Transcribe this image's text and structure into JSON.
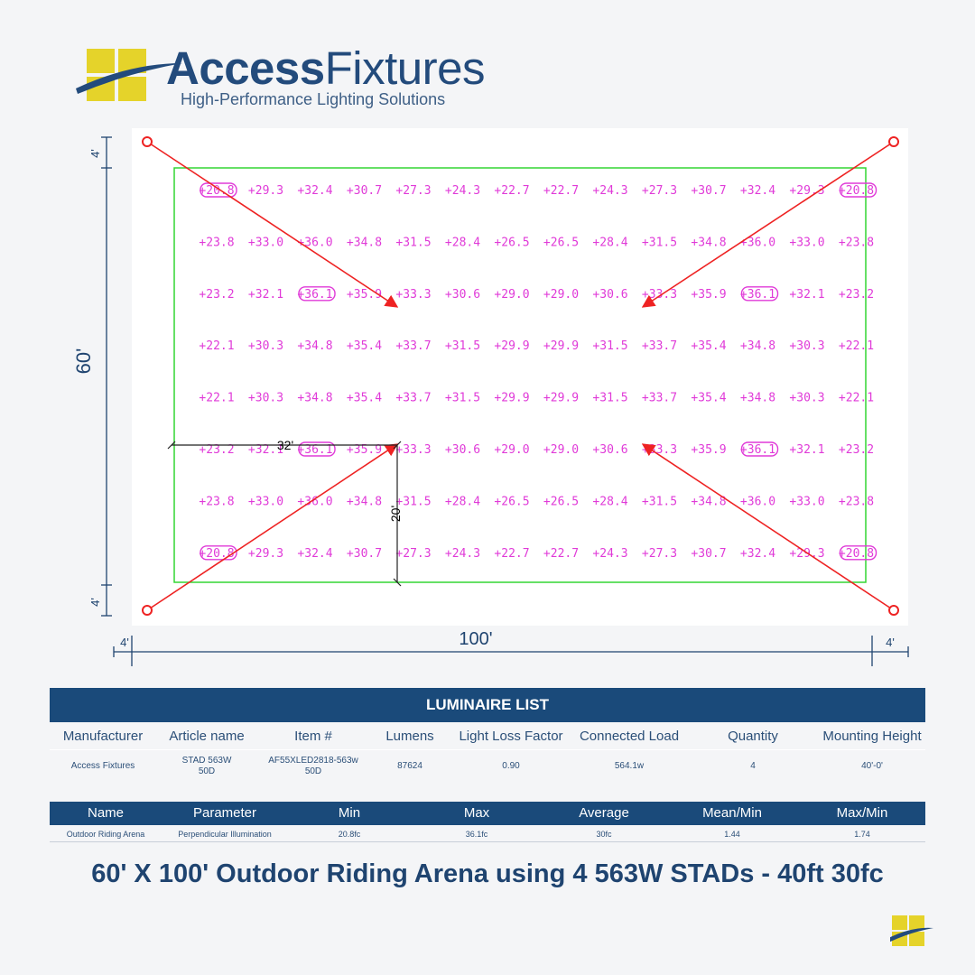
{
  "logo": {
    "brand_bold": "Access",
    "brand_light": "Fixtures",
    "tagline": "High-Performance Lighting Solutions",
    "colors": {
      "yellow": "#e5d32a",
      "navy": "#234b7c"
    }
  },
  "plan": {
    "dims": {
      "left_height": "60'",
      "top_margin": "4'",
      "bottom_margin": "4'",
      "width": "100'",
      "left_margin": "4'",
      "right_margin": "4'",
      "offset_x": "32'",
      "offset_y": "20'"
    },
    "fixture_note": "4 poles with red aim arrows",
    "grid": [
      [
        "20.8",
        "29.3",
        "32.4",
        "30.7",
        "27.3",
        "24.3",
        "22.7",
        "22.7",
        "24.3",
        "27.3",
        "30.7",
        "32.4",
        "29.3",
        "20.8"
      ],
      [
        "23.8",
        "33.0",
        "36.0",
        "34.8",
        "31.5",
        "28.4",
        "26.5",
        "26.5",
        "28.4",
        "31.5",
        "34.8",
        "36.0",
        "33.0",
        "23.8"
      ],
      [
        "23.2",
        "32.1",
        "36.1",
        "35.9",
        "33.3",
        "30.6",
        "29.0",
        "29.0",
        "30.6",
        "33.3",
        "35.9",
        "36.1",
        "32.1",
        "23.2"
      ],
      [
        "22.1",
        "30.3",
        "34.8",
        "35.4",
        "33.7",
        "31.5",
        "29.9",
        "29.9",
        "31.5",
        "33.7",
        "35.4",
        "34.8",
        "30.3",
        "22.1"
      ],
      [
        "22.1",
        "30.3",
        "34.8",
        "35.4",
        "33.7",
        "31.5",
        "29.9",
        "29.9",
        "31.5",
        "33.7",
        "35.4",
        "34.8",
        "30.3",
        "22.1"
      ],
      [
        "23.2",
        "32.1",
        "36.1",
        "35.9",
        "33.3",
        "30.6",
        "29.0",
        "29.0",
        "30.6",
        "33.3",
        "35.9",
        "36.1",
        "32.1",
        "23.2"
      ],
      [
        "23.8",
        "33.0",
        "36.0",
        "34.8",
        "31.5",
        "28.4",
        "26.5",
        "26.5",
        "28.4",
        "31.5",
        "34.8",
        "36.0",
        "33.0",
        "23.8"
      ],
      [
        "20.8",
        "29.3",
        "32.4",
        "30.7",
        "27.3",
        "24.3",
        "22.7",
        "22.7",
        "24.3",
        "27.3",
        "30.7",
        "32.4",
        "29.3",
        "20.8"
      ]
    ],
    "colors": {
      "values": "#e03ad8",
      "field": "#33d633",
      "aim": "#ee2222"
    }
  },
  "luminaire": {
    "title": "LUMINAIRE LIST",
    "headers": [
      "Manufacturer",
      "Article name",
      "Item #",
      "Lumens",
      "Light Loss Factor",
      "Connected Load",
      "Quantity",
      "Mounting Height"
    ],
    "values": [
      "Access Fixtures",
      "STAD 563W 50D",
      "AF55XLED2818-563w 50D",
      "87624",
      "0.90",
      "564.1w",
      "4",
      "40'-0'"
    ]
  },
  "illum": {
    "headers": [
      "Name",
      "Parameter",
      "Min",
      "Max",
      "Average",
      "Mean/Min",
      "Max/Min"
    ],
    "values": [
      "Outdoor Riding Arena",
      "Perpendicular Illumination",
      "20.8fc",
      "36.1fc",
      "30fc",
      "1.44",
      "1.74"
    ]
  },
  "caption": "60' X 100' Outdoor Riding Arena using 4 563W STADs - 40ft 30fc"
}
